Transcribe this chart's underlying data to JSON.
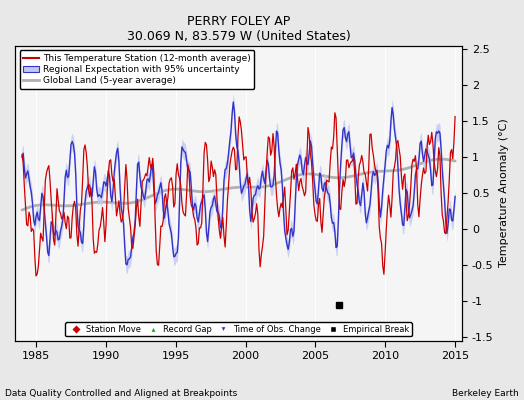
{
  "title": "PERRY FOLEY AP",
  "subtitle": "30.069 N, 83.579 W (United States)",
  "ylabel": "Temperature Anomaly (°C)",
  "xlabel_left": "Data Quality Controlled and Aligned at Breakpoints",
  "xlabel_right": "Berkeley Earth",
  "xlim": [
    1983.5,
    2015.5
  ],
  "ylim": [
    -1.55,
    2.55
  ],
  "yticks": [
    -1.5,
    -1.0,
    -0.5,
    0.0,
    0.5,
    1.0,
    1.5,
    2.0,
    2.5
  ],
  "xticks": [
    1985,
    1990,
    1995,
    2000,
    2005,
    2010,
    2015
  ],
  "bg_color": "#e8e8e8",
  "plot_bg": "#f5f5f5",
  "empirical_break_x": 2006.7,
  "empirical_break_y": -1.05
}
